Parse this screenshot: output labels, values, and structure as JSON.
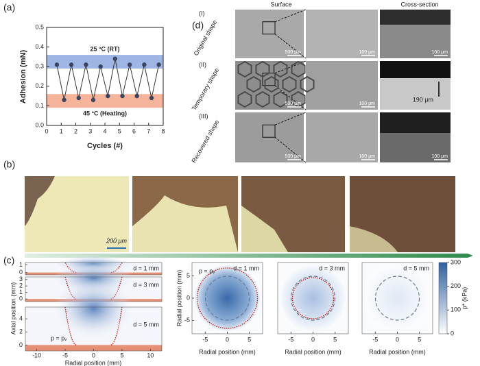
{
  "chart_data": {
    "type": "line",
    "panel_label": "(a)",
    "x_label": "Cycles (#)",
    "y_label": "Adhesion (mN)",
    "x": [
      0.7,
      1.2,
      1.7,
      2.2,
      2.7,
      3.2,
      3.7,
      4.2,
      4.7,
      5.2,
      5.7,
      6.2,
      6.7,
      7.2,
      7.7
    ],
    "values": [
      0.31,
      0.13,
      0.31,
      0.14,
      0.31,
      0.13,
      0.3,
      0.15,
      0.34,
      0.15,
      0.31,
      0.15,
      0.31,
      0.14,
      0.31
    ],
    "color": "#333333",
    "marker_color": "#3a4660",
    "xlim": [
      0,
      8
    ],
    "ylim": [
      0,
      0.5
    ],
    "xticks": [
      0,
      1,
      2,
      3,
      4,
      5,
      6,
      7,
      8
    ],
    "yticks": [
      {
        "value": 0,
        "label": "0.0"
      },
      0.1,
      0.2,
      0.3,
      0.4,
      0.5
    ],
    "bands": [
      {
        "range": [
          0.29,
          0.36
        ],
        "color": "#8ea9e0",
        "label": "25 °C (RT)"
      },
      {
        "range": [
          0.09,
          0.16
        ],
        "color": "#f4a88a",
        "label": "45 °C (Heating)"
      }
    ]
  },
  "panel_d": {
    "label": "(d)",
    "columns": [
      "Surface",
      "Cross-section"
    ],
    "rows": [
      {
        "num": "(I)",
        "name": "Original shape",
        "scales": [
          "500 μm",
          "100 μm",
          "100 μm"
        ]
      },
      {
        "num": "(II)",
        "name": "Temporary shape",
        "scales": [
          "500 μm",
          "100 μm"
        ],
        "note": "190 μm"
      },
      {
        "num": "(III)",
        "name": "Recovered shape",
        "scales": [
          "500 μm",
          "100 μm",
          "100 μm"
        ]
      }
    ]
  },
  "panel_b": {
    "label": "(b)",
    "scale": "200 μm"
  },
  "panel_c": {
    "label": "(c)",
    "axial_label": "Axial position (mm)",
    "radial_label": "Radial position (mm)",
    "pv": "p = pᵥ",
    "left_xlim": [
      -12,
      12
    ],
    "left_xticks": [
      -10,
      -5,
      0,
      5,
      10
    ],
    "left_plots": [
      {
        "label": "d = 1 mm",
        "ylim": [
          -0.3,
          1.3
        ],
        "yticks": [
          0,
          1
        ]
      },
      {
        "label": "d = 3 mm",
        "ylim": [
          -0.4,
          3.4
        ],
        "yticks": [
          0,
          1,
          2,
          3
        ]
      },
      {
        "label": "d = 5 mm",
        "ylim": [
          -0.9,
          5.8
        ],
        "yticks": [
          0,
          2,
          4
        ]
      }
    ],
    "right_xlim": [
      -8,
      8
    ],
    "right_ticks": [
      -5,
      0,
      5
    ],
    "right_plots": [
      {
        "label": "d = 1 mm"
      },
      {
        "label": "d = 3 mm"
      },
      {
        "label": "d = 5 mm"
      }
    ],
    "colorbar_lim": [
      0,
      300
    ],
    "colorbar_ticks": [
      0,
      100,
      200,
      300
    ],
    "colorbar_label": "p* (kPa)"
  }
}
